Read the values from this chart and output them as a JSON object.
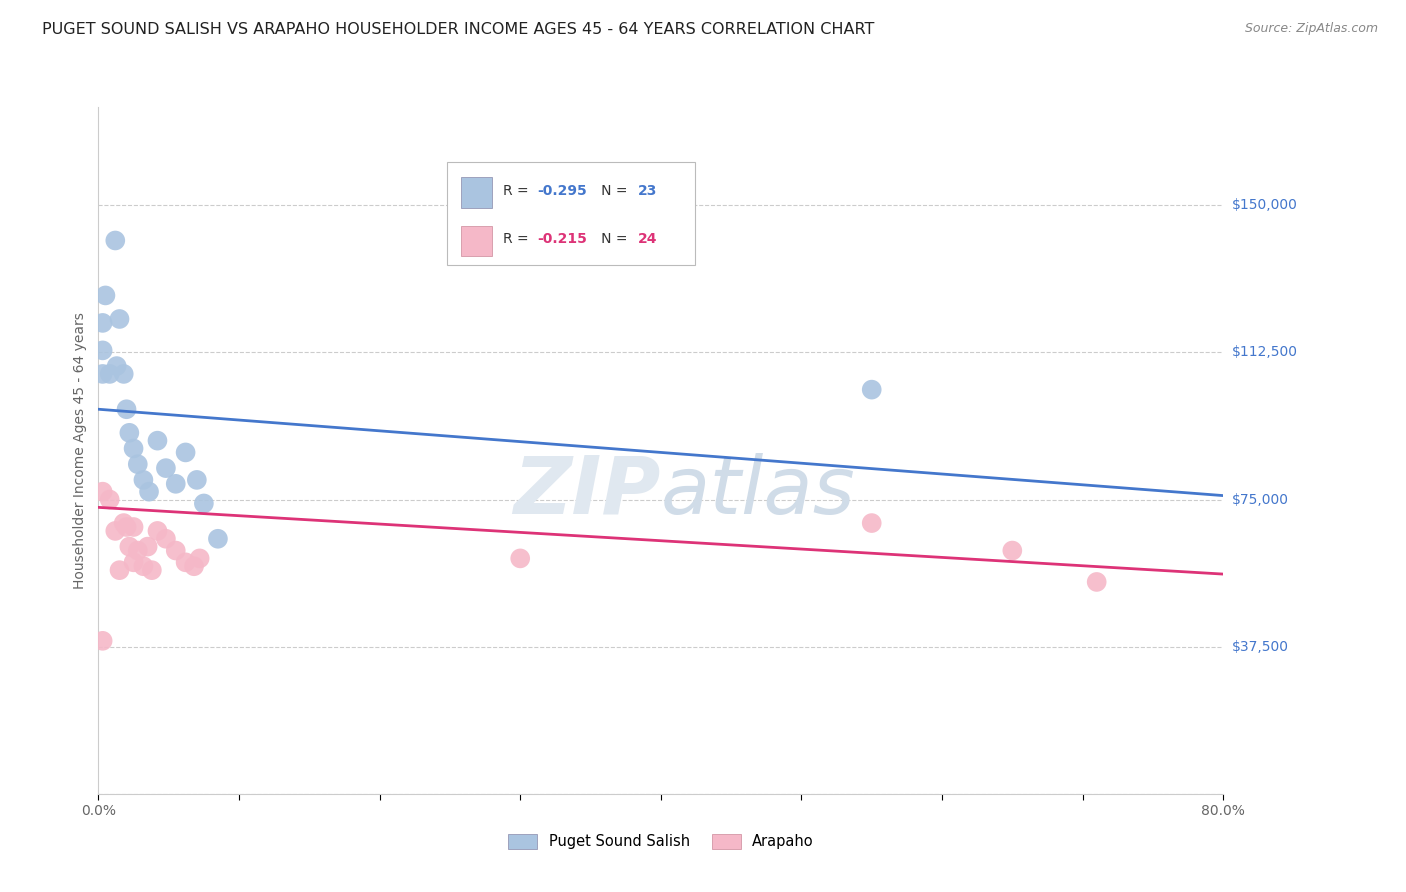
{
  "title": "PUGET SOUND SALISH VS ARAPAHO HOUSEHOLDER INCOME AGES 45 - 64 YEARS CORRELATION CHART",
  "source": "Source: ZipAtlas.com",
  "ylabel": "Householder Income Ages 45 - 64 years",
  "xlim": [
    0.0,
    0.8
  ],
  "ylim": [
    0,
    175000
  ],
  "yticks": [
    0,
    37500,
    75000,
    112500,
    150000
  ],
  "ytick_labels": [
    "",
    "$37,500",
    "$75,000",
    "$112,500",
    "$150,000"
  ],
  "xticks": [
    0.0,
    0.1,
    0.2,
    0.3,
    0.4,
    0.5,
    0.6,
    0.7,
    0.8
  ],
  "xtick_labels": [
    "0.0%",
    "",
    "",
    "",
    "",
    "",
    "",
    "",
    "80.0%"
  ],
  "background_color": "#ffffff",
  "grid_color": "#cccccc",
  "blue_color": "#aac4e0",
  "pink_color": "#f5b8c8",
  "line_blue": "#4477cc",
  "line_pink": "#dd3377",
  "legend_R_blue": "-0.295",
  "legend_N_blue": "23",
  "legend_R_pink": "-0.215",
  "legend_N_pink": "24",
  "legend_label_blue": "Puget Sound Salish",
  "legend_label_pink": "Arapaho",
  "blue_x": [
    0.003,
    0.012,
    0.005,
    0.013,
    0.018,
    0.02,
    0.022,
    0.025,
    0.028,
    0.032,
    0.036,
    0.042,
    0.048,
    0.055,
    0.062,
    0.07,
    0.075,
    0.085,
    0.003,
    0.008,
    0.015,
    0.55,
    0.003
  ],
  "blue_y": [
    113000,
    141000,
    127000,
    109000,
    107000,
    98000,
    92000,
    88000,
    84000,
    80000,
    77000,
    90000,
    83000,
    79000,
    87000,
    80000,
    74000,
    65000,
    120000,
    107000,
    121000,
    103000,
    107000
  ],
  "pink_x": [
    0.003,
    0.008,
    0.012,
    0.015,
    0.018,
    0.02,
    0.022,
    0.025,
    0.025,
    0.028,
    0.032,
    0.035,
    0.038,
    0.042,
    0.048,
    0.055,
    0.062,
    0.068,
    0.072,
    0.3,
    0.55,
    0.65,
    0.71,
    0.003
  ],
  "pink_y": [
    77000,
    75000,
    67000,
    57000,
    69000,
    68000,
    63000,
    59000,
    68000,
    62000,
    58000,
    63000,
    57000,
    67000,
    65000,
    62000,
    59000,
    58000,
    60000,
    60000,
    69000,
    62000,
    54000,
    39000
  ],
  "blue_line_x": [
    0.0,
    0.8
  ],
  "blue_line_y": [
    98000,
    76000
  ],
  "pink_line_x": [
    0.0,
    0.8
  ],
  "pink_line_y": [
    73000,
    56000
  ],
  "marker_size": 200,
  "title_fontsize": 11.5,
  "axis_label_fontsize": 10,
  "tick_fontsize": 10,
  "source_fontsize": 9,
  "watermark": "ZIPatlas"
}
